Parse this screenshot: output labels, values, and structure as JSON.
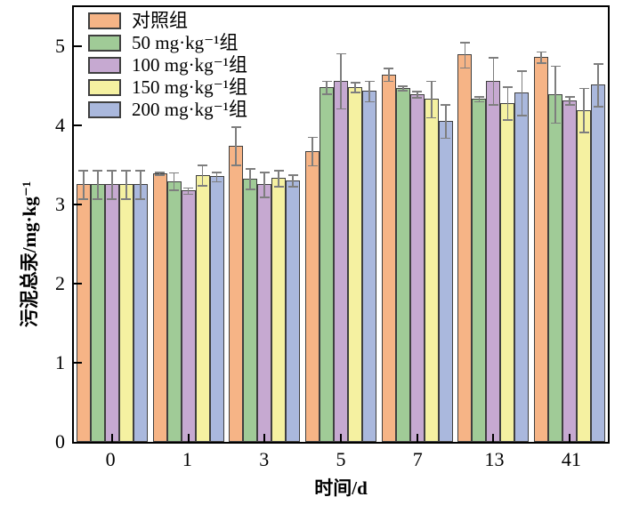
{
  "chart_data": {
    "type": "bar",
    "title": "",
    "xlabel": "时间/d",
    "ylabel": "污泥总汞/mg·kg⁻¹",
    "categories": [
      "0",
      "1",
      "3",
      "5",
      "7",
      "13",
      "41"
    ],
    "ylim": [
      0,
      5.5
    ],
    "yticks": [
      0,
      1,
      2,
      3,
      4,
      5
    ],
    "grid": false,
    "legend_position": "top-left-inside",
    "bar_border_color": "#3f3f3f",
    "error_bar_color": "#7e7e7e",
    "series": [
      {
        "name": "对照组",
        "color": "#F6B486",
        "values": [
          3.26,
          3.4,
          3.75,
          3.68,
          4.65,
          4.9,
          4.87
        ],
        "errors": [
          0.18,
          0.02,
          0.24,
          0.18,
          0.08,
          0.16,
          0.07
        ]
      },
      {
        "name": "50 mg·kg⁻¹组",
        "color": "#A0CB97",
        "values": [
          3.26,
          3.3,
          3.33,
          4.49,
          4.48,
          4.34,
          4.4
        ],
        "errors": [
          0.18,
          0.11,
          0.13,
          0.08,
          0.03,
          0.03,
          0.36
        ]
      },
      {
        "name": "100 mg·kg⁻¹组",
        "color": "#C6A9D1",
        "values": [
          3.26,
          3.18,
          3.26,
          4.57,
          4.4,
          4.57,
          4.32
        ],
        "errors": [
          0.18,
          0.04,
          0.16,
          0.35,
          0.04,
          0.3,
          0.05
        ]
      },
      {
        "name": "150 mg·kg⁻¹组",
        "color": "#F5F1A1",
        "values": [
          3.26,
          3.38,
          3.34,
          4.49,
          4.34,
          4.29,
          4.2
        ],
        "errors": [
          0.18,
          0.13,
          0.1,
          0.06,
          0.23,
          0.21,
          0.28
        ]
      },
      {
        "name": "200 mg·kg⁻¹组",
        "color": "#AAB8DD",
        "values": [
          3.26,
          3.36,
          3.31,
          4.44,
          4.06,
          4.42,
          4.52
        ],
        "errors": [
          0.18,
          0.06,
          0.07,
          0.13,
          0.21,
          0.28,
          0.27
        ]
      }
    ]
  }
}
